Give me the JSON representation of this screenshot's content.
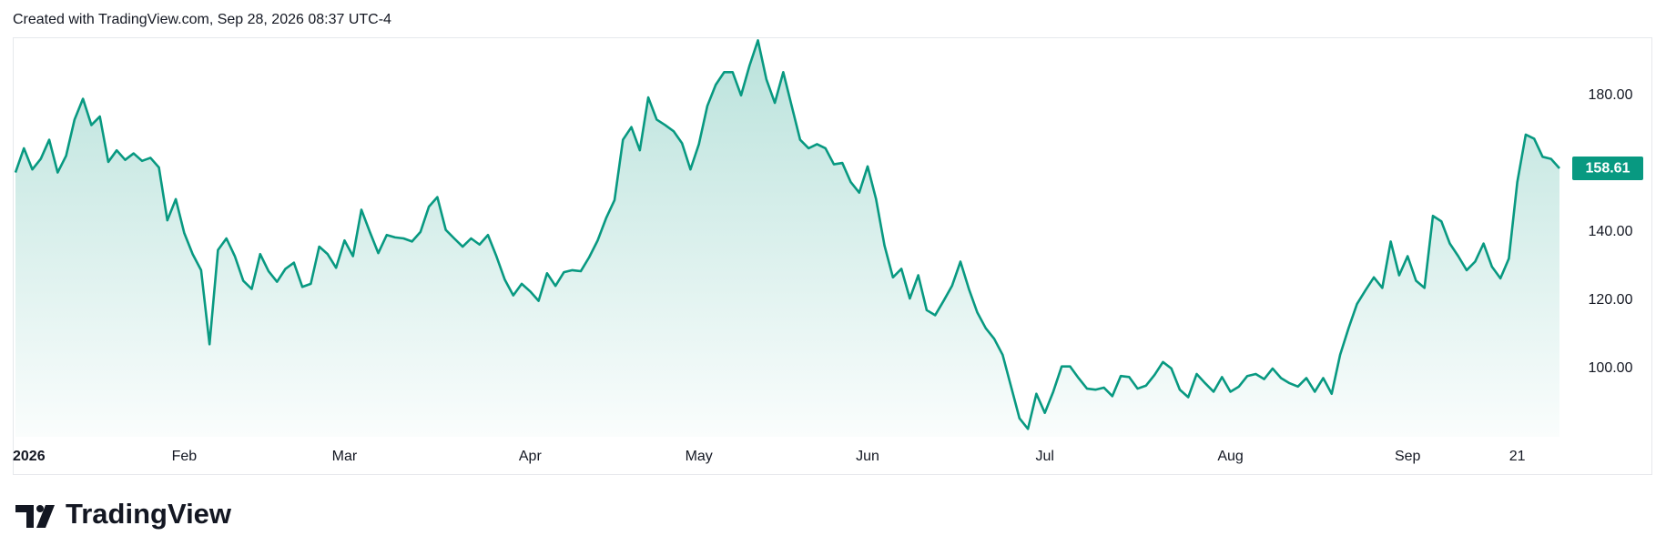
{
  "header": "Created with TradingView.com, Sep 28, 2026 08:37 UTC-4",
  "brand": "TradingView",
  "chart_data": {
    "type": "area",
    "color": "#089981",
    "categories": [
      "2026",
      null,
      null,
      null,
      null,
      null,
      null,
      null,
      null,
      null,
      null,
      null,
      null,
      null,
      null,
      null,
      null,
      null,
      null,
      null,
      "Feb",
      null,
      null,
      null,
      null,
      null,
      null,
      null,
      null,
      null,
      null,
      null,
      null,
      null,
      null,
      null,
      null,
      null,
      null,
      "Mar",
      null,
      null,
      null,
      null,
      null,
      null,
      null,
      null,
      null,
      null,
      null,
      null,
      null,
      null,
      null,
      null,
      null,
      null,
      null,
      null,
      null,
      "Apr",
      null,
      null,
      null,
      null,
      null,
      null,
      null,
      null,
      null,
      null,
      null,
      null,
      null,
      null,
      null,
      null,
      null,
      null,
      null,
      "May",
      null,
      null,
      null,
      null,
      null,
      null,
      null,
      null,
      null,
      null,
      null,
      null,
      null,
      null,
      null,
      null,
      null,
      null,
      null,
      "Jun",
      null,
      null,
      null,
      null,
      null,
      null,
      null,
      null,
      null,
      null,
      null,
      null,
      null,
      null,
      null,
      null,
      null,
      null,
      null,
      null,
      "Jul",
      null,
      null,
      null,
      null,
      null,
      null,
      null,
      null,
      null,
      null,
      null,
      null,
      null,
      null,
      null,
      null,
      null,
      null,
      null,
      null,
      null,
      "Aug",
      null,
      null,
      null,
      null,
      null,
      null,
      null,
      null,
      null,
      null,
      null,
      null,
      null,
      null,
      null,
      null,
      null,
      null,
      null,
      null,
      "Sep",
      null,
      null,
      null,
      null,
      null,
      null,
      null,
      null,
      null,
      null,
      null,
      null,
      "21",
      null,
      null,
      null,
      null,
      null
    ],
    "values": [
      157.4,
      164.5,
      158.3,
      161.4,
      167,
      157.4,
      162.3,
      172.9,
      179,
      171.3,
      173.8,
      160.5,
      163.9,
      161.1,
      163,
      160.8,
      161.7,
      158.9,
      143.4,
      149.6,
      139.7,
      133.5,
      128.8,
      107.1,
      134.7,
      138.1,
      132.9,
      125.7,
      123.3,
      133.5,
      128.5,
      125.4,
      129.2,
      131,
      123.9,
      124.8,
      135.7,
      133.5,
      129.5,
      137.5,
      132.9,
      146.5,
      140,
      133.8,
      139.1,
      138.4,
      138.1,
      137.2,
      140,
      147.4,
      150.2,
      140.6,
      138.1,
      135.7,
      138.1,
      136.3,
      139.1,
      132.9,
      126,
      121.4,
      124.8,
      122.6,
      119.8,
      127.9,
      124.2,
      128.2,
      128.8,
      128.5,
      132.6,
      137.5,
      144,
      149.3,
      167,
      170.7,
      163.9,
      179.4,
      172.9,
      171.3,
      169.5,
      166,
      158.3,
      165.7,
      176.9,
      183.1,
      186.8,
      186.8,
      180,
      188.7,
      196.1,
      184.7,
      177.8,
      186.8,
      176.9,
      167,
      164.5,
      165.7,
      164.5,
      159.8,
      160.2,
      154.6,
      151.5,
      159.2,
      149.6,
      136,
      126.7,
      129.2,
      120.5,
      127.3,
      117.1,
      115.6,
      119.8,
      124.2,
      131.3,
      123.3,
      116.4,
      111.8,
      108.7,
      104,
      94.7,
      85.4,
      82.3,
      92.6,
      87,
      93.2,
      100.6,
      100.6,
      97.2,
      94.1,
      93.8,
      94.4,
      91.9,
      97.8,
      97.5,
      94.1,
      95,
      98.1,
      101.9,
      100,
      93.8,
      91.6,
      98.4,
      95.7,
      93.2,
      97.5,
      93.2,
      94.7,
      97.8,
      98.4,
      96.9,
      100,
      97.2,
      95.7,
      94.7,
      97.2,
      93.2,
      97.2,
      92.6,
      104,
      111.8,
      118.9,
      122.9,
      126.7,
      123.6,
      137.2,
      127.3,
      132.9,
      125.7,
      123.6,
      144.7,
      143.1,
      136.6,
      132.9,
      128.8,
      131.3,
      136.6,
      129.8,
      126.4,
      132.2,
      154.6,
      168.5,
      167.3,
      162,
      161.4,
      158.61
    ],
    "ylim": [
      80,
      197
    ],
    "yticks": [
      {
        "value": 100,
        "label": "100.00"
      },
      {
        "value": 120,
        "label": "120.00"
      },
      {
        "value": 140,
        "label": "140.00"
      },
      {
        "value": 180,
        "label": "180.00"
      }
    ],
    "grid": false
  }
}
